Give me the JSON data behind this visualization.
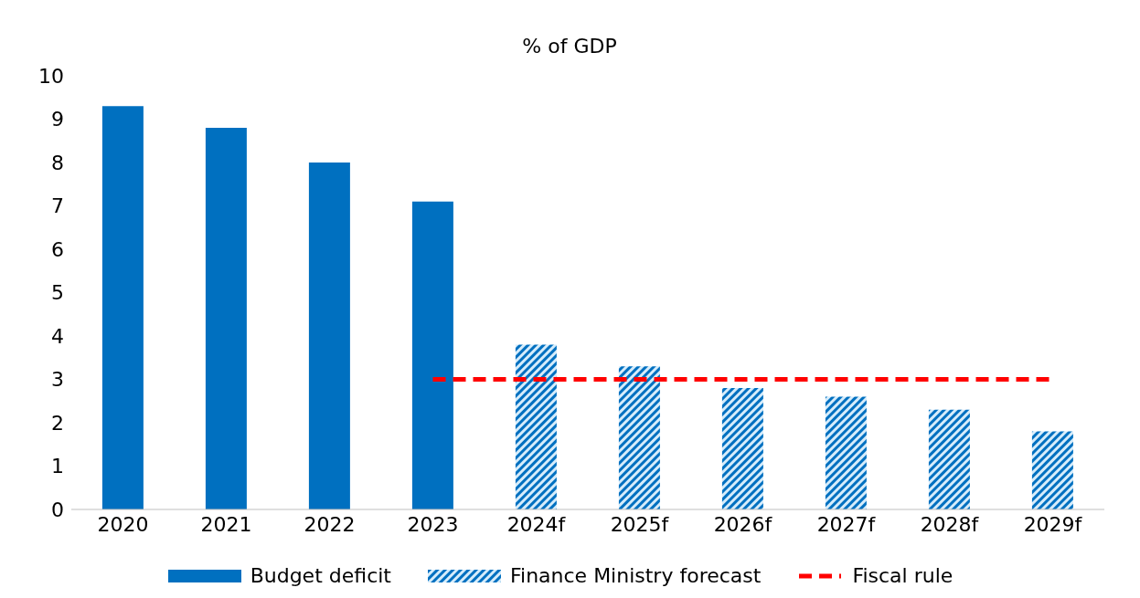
{
  "chart_data": {
    "type": "bar",
    "title": "% of GDP",
    "categories": [
      "2020",
      "2021",
      "2022",
      "2023",
      "2024f",
      "2025f",
      "2026f",
      "2027f",
      "2028f",
      "2029f"
    ],
    "series": [
      {
        "name": "Budget deficit",
        "color": "#0070c0",
        "values": [
          9.3,
          8.8,
          8.0,
          7.1,
          null,
          null,
          null,
          null,
          null,
          null
        ]
      },
      {
        "name": "Finance Ministry forecast",
        "color": "#0070c0",
        "values": [
          null,
          null,
          null,
          null,
          3.8,
          3.3,
          2.8,
          2.6,
          2.3,
          1.8
        ]
      },
      {
        "name": "Fiscal rule",
        "type": "line",
        "color": "#ff0000",
        "line_style": "dashed",
        "values": [
          null,
          null,
          null,
          3,
          3,
          3,
          3,
          3,
          3,
          3
        ]
      }
    ],
    "stacked": true,
    "ylim": [
      0,
      10
    ],
    "yticks": [
      0,
      1,
      2,
      3,
      4,
      5,
      6,
      7,
      8,
      9,
      10
    ],
    "grid": false,
    "legend": "bottom",
    "marker": "none"
  }
}
